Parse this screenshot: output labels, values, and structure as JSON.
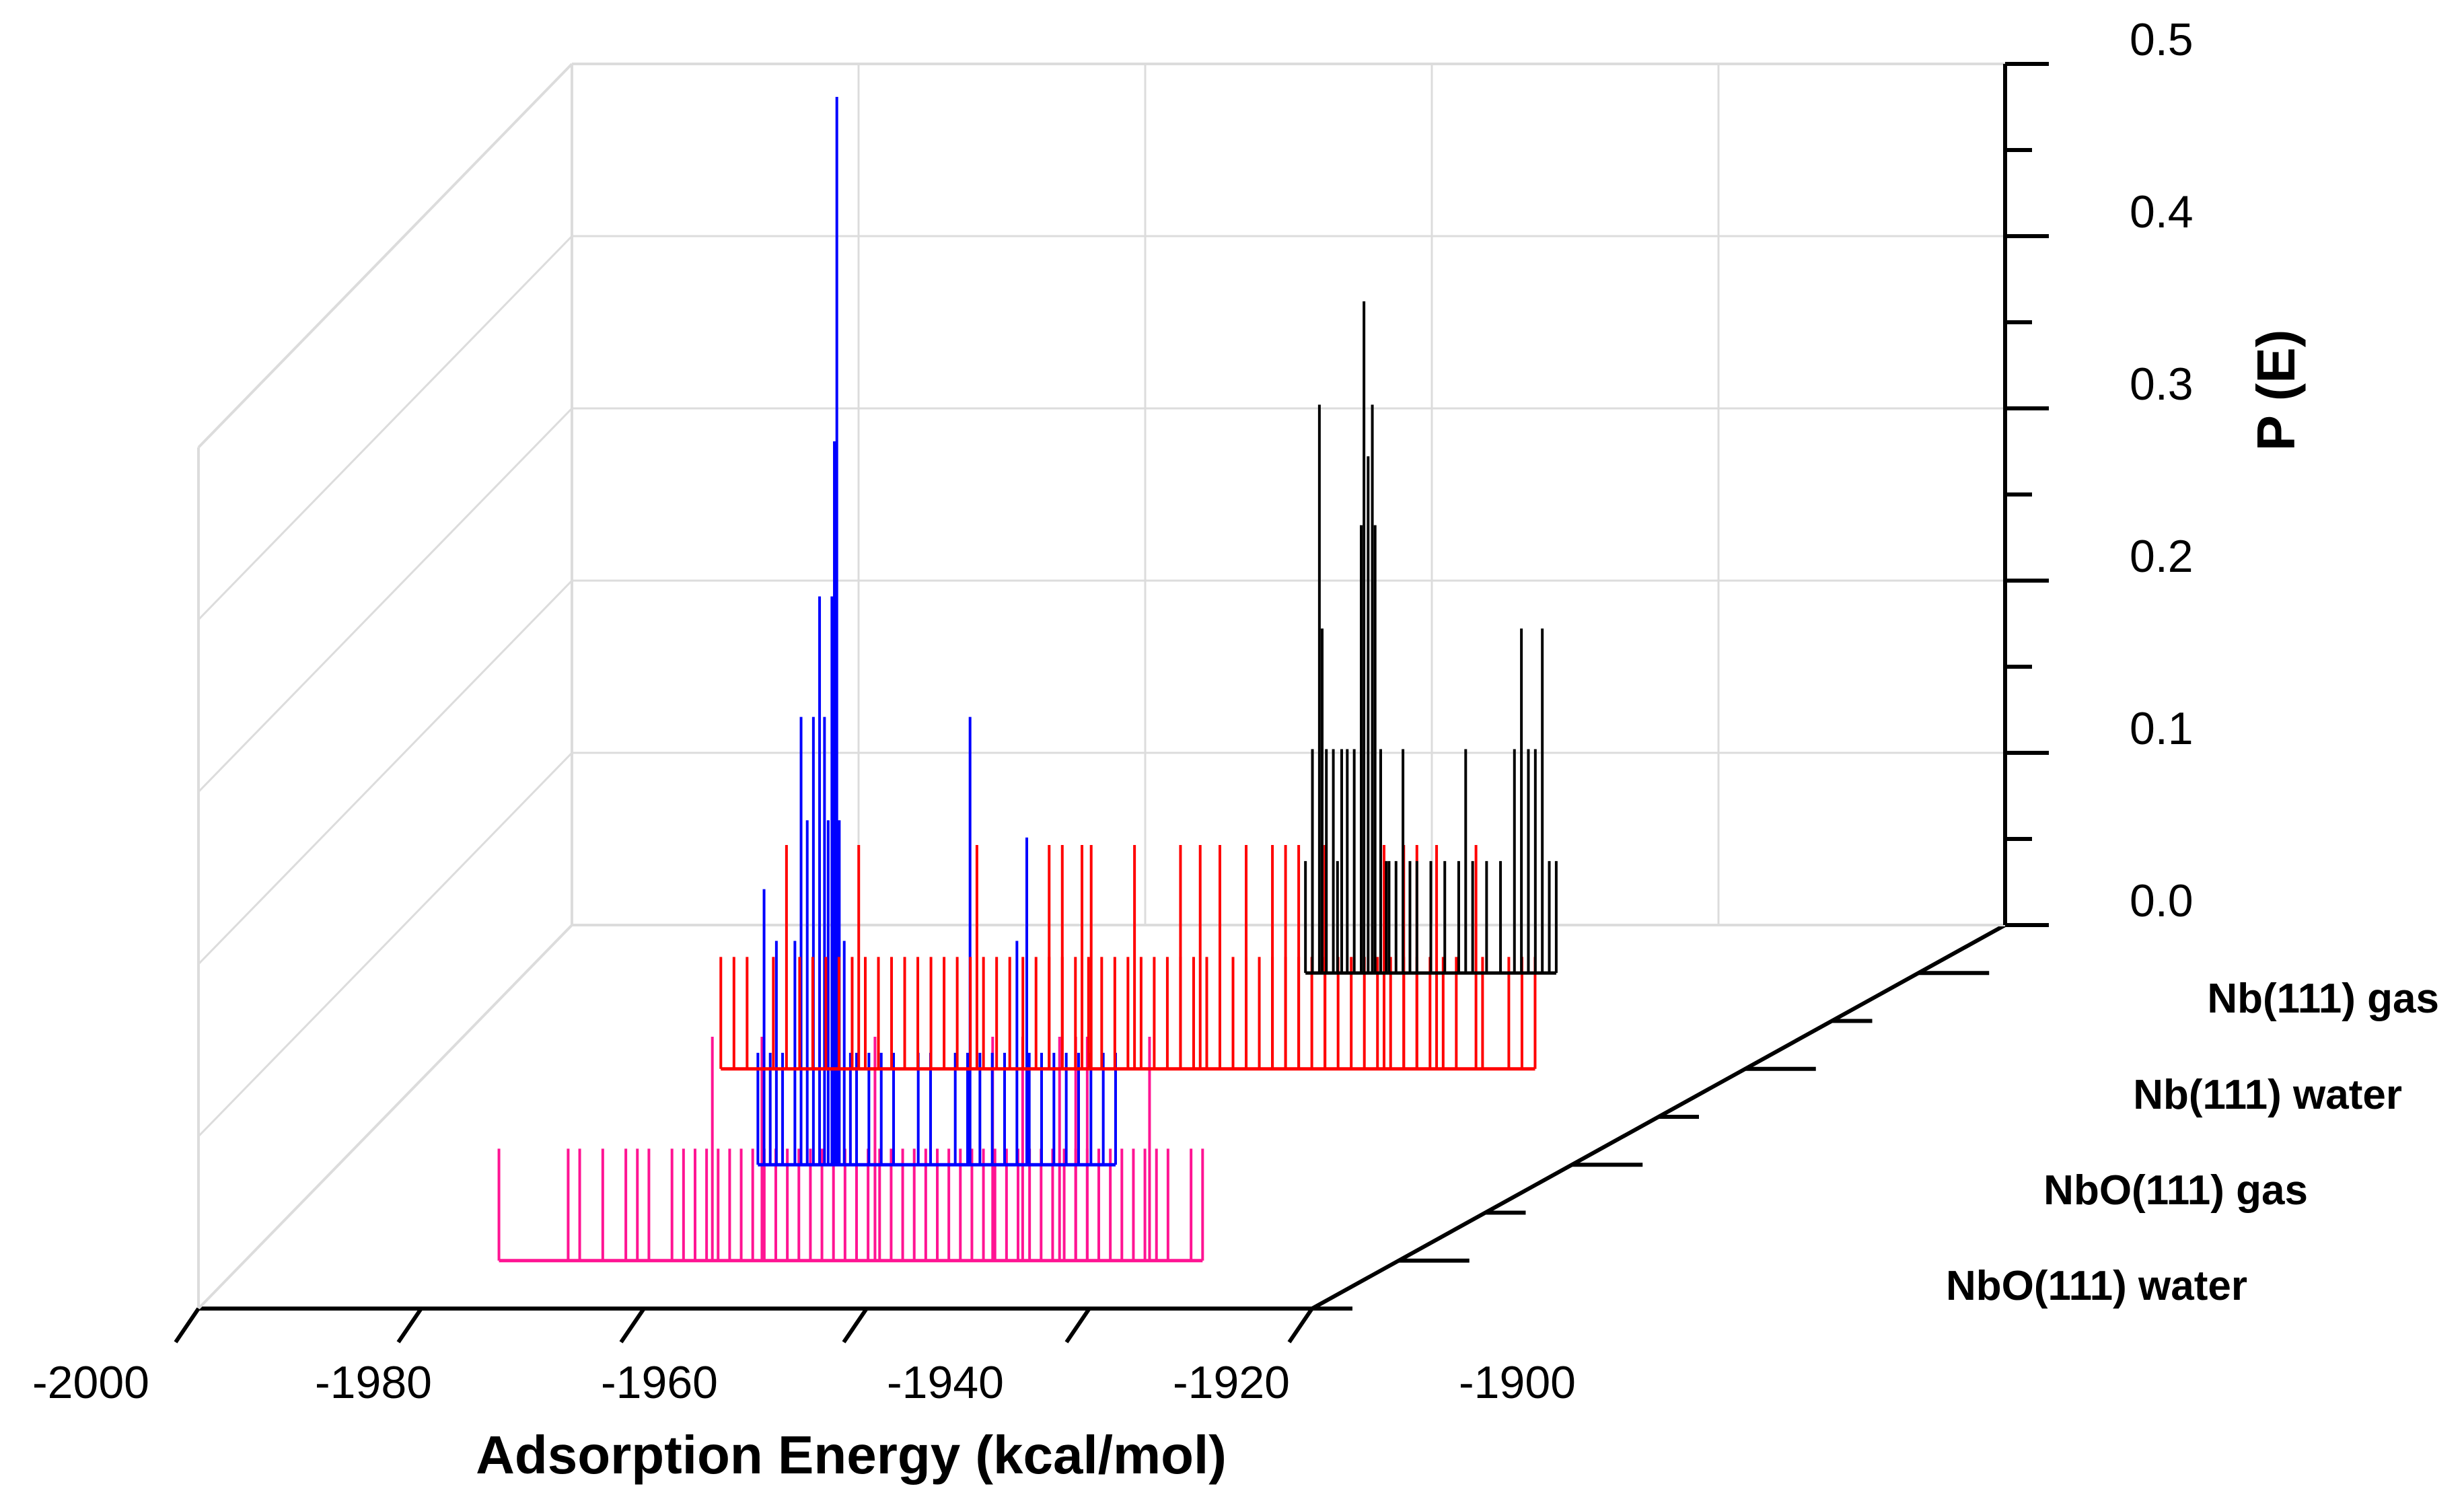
{
  "chart_data": {
    "type": "3d-waterfall-histogram",
    "xlabel": "Adsorption Energy (kcal/mol)",
    "zlabel": "P (E)",
    "xlim": [
      -2000,
      -1900
    ],
    "zlim": [
      0.0,
      0.5
    ],
    "x_ticks": [
      -2000,
      -1980,
      -1960,
      -1940,
      -1920,
      -1900
    ],
    "x_tick_labels": [
      "-2000",
      "-1980",
      "-1960",
      "-1940",
      "-1920",
      "-1900"
    ],
    "z_ticks": [
      0.0,
      0.1,
      0.2,
      0.3,
      0.4,
      0.5
    ],
    "z_tick_labels": [
      "0.0",
      "0.1",
      "0.2",
      "0.3",
      "0.4",
      "0.5"
    ],
    "colors": {
      "frame": "#000000",
      "grid": "#dcdcdc"
    },
    "series": [
      {
        "name": "NbO(111) water",
        "label": "NbO(111) water",
        "color": "#ff1493",
        "depth_index": 0,
        "range": [
          -1978,
          -1917
        ],
        "points": [
          [
            -1978,
            0.065
          ],
          [
            -1972,
            0.065
          ],
          [
            -1971,
            0.065
          ],
          [
            -1969,
            0.065
          ],
          [
            -1967,
            0.065
          ],
          [
            -1966,
            0.065
          ],
          [
            -1965,
            0.065
          ],
          [
            -1963,
            0.065
          ],
          [
            -1962,
            0.065
          ],
          [
            -1961,
            0.065
          ],
          [
            -1960,
            0.065
          ],
          [
            -1959,
            0.065
          ],
          [
            -1958,
            0.065
          ],
          [
            -1957,
            0.065
          ],
          [
            -1956,
            0.065
          ],
          [
            -1955,
            0.065
          ],
          [
            -1954,
            0.065
          ],
          [
            -1953,
            0.065
          ],
          [
            -1952,
            0.065
          ],
          [
            -1951,
            0.065
          ],
          [
            -1950,
            0.065
          ],
          [
            -1949,
            0.065
          ],
          [
            -1948,
            0.065
          ],
          [
            -1947,
            0.065
          ],
          [
            -1946,
            0.065
          ],
          [
            -1945,
            0.065
          ],
          [
            -1944,
            0.065
          ],
          [
            -1943,
            0.065
          ],
          [
            -1942,
            0.065
          ],
          [
            -1941,
            0.065
          ],
          [
            -1940,
            0.065
          ],
          [
            -1939,
            0.065
          ],
          [
            -1938,
            0.065
          ],
          [
            -1937,
            0.065
          ],
          [
            -1936,
            0.065
          ],
          [
            -1935,
            0.065
          ],
          [
            -1934,
            0.065
          ],
          [
            -1933,
            0.065
          ],
          [
            -1932,
            0.065
          ],
          [
            -1931,
            0.065
          ],
          [
            -1930,
            0.065
          ],
          [
            -1929,
            0.065
          ],
          [
            -1928,
            0.065
          ],
          [
            -1927,
            0.065
          ],
          [
            -1926,
            0.065
          ],
          [
            -1925,
            0.065
          ],
          [
            -1924,
            0.065
          ],
          [
            -1923,
            0.065
          ],
          [
            -1922,
            0.065
          ],
          [
            -1921,
            0.065
          ],
          [
            -1920,
            0.065
          ],
          [
            -1918,
            0.065
          ],
          [
            -1917,
            0.065
          ],
          [
            -1959.5,
            0.13
          ],
          [
            -1955.2,
            0.13
          ],
          [
            -1945.4,
            0.13
          ],
          [
            -1935.2,
            0.13
          ],
          [
            -1932.6,
            0.13
          ],
          [
            -1929.4,
            0.13
          ],
          [
            -1928.0,
            0.13
          ],
          [
            -1927.0,
            0.13
          ],
          [
            -1921.6,
            0.13
          ]
        ]
      },
      {
        "name": "NbO(111) gas",
        "label": "NbO(111) gas",
        "color": "#0000ff",
        "depth_index": 1,
        "range": [
          -1966,
          -1937
        ],
        "points": [
          [
            -1966,
            0.065
          ],
          [
            -1965,
            0.065
          ],
          [
            -1964,
            0.065
          ],
          [
            -1963,
            0.13
          ],
          [
            -1962,
            0.2
          ],
          [
            -1961.5,
            0.26
          ],
          [
            -1961,
            0.33
          ],
          [
            -1960.6,
            0.26
          ],
          [
            -1960.3,
            0.2
          ],
          [
            -1960,
            0.33
          ],
          [
            -1959.8,
            0.42
          ],
          [
            -1959.6,
            0.62
          ],
          [
            -1959.4,
            0.2
          ],
          [
            -1959,
            0.13
          ],
          [
            -1958.5,
            0.065
          ],
          [
            -1958,
            0.065
          ],
          [
            -1957,
            0.065
          ],
          [
            -1956,
            0.065
          ],
          [
            -1955,
            0.065
          ],
          [
            -1953,
            0.065
          ],
          [
            -1952,
            0.065
          ],
          [
            -1950,
            0.065
          ],
          [
            -1949,
            0.065
          ],
          [
            -1948,
            0.065
          ],
          [
            -1947,
            0.065
          ],
          [
            -1946,
            0.065
          ],
          [
            -1945,
            0.13
          ],
          [
            -1944,
            0.065
          ],
          [
            -1943,
            0.065
          ],
          [
            -1942,
            0.065
          ],
          [
            -1941,
            0.065
          ],
          [
            -1940,
            0.065
          ],
          [
            -1939,
            0.065
          ],
          [
            -1938,
            0.065
          ],
          [
            -1937,
            0.065
          ],
          [
            -1965.5,
            0.16
          ],
          [
            -1964.5,
            0.13
          ],
          [
            -1962.5,
            0.26
          ],
          [
            -1948.8,
            0.26
          ],
          [
            -1944.2,
            0.19
          ]
        ]
      },
      {
        "name": "Nb(111) water",
        "label": "Nb(111) water",
        "color": "#ff0000",
        "depth_index": 2,
        "range": [
          -1978,
          -1916
        ],
        "points": [
          [
            -1978,
            0.065
          ],
          [
            -1977,
            0.065
          ],
          [
            -1976,
            0.065
          ],
          [
            -1974,
            0.065
          ],
          [
            -1972,
            0.065
          ],
          [
            -1971,
            0.065
          ],
          [
            -1970,
            0.065
          ],
          [
            -1969,
            0.065
          ],
          [
            -1968,
            0.065
          ],
          [
            -1967,
            0.065
          ],
          [
            -1966,
            0.065
          ],
          [
            -1965,
            0.065
          ],
          [
            -1964,
            0.065
          ],
          [
            -1963,
            0.065
          ],
          [
            -1962,
            0.065
          ],
          [
            -1961,
            0.065
          ],
          [
            -1960,
            0.065
          ],
          [
            -1959,
            0.065
          ],
          [
            -1958,
            0.065
          ],
          [
            -1957,
            0.065
          ],
          [
            -1956,
            0.065
          ],
          [
            -1955,
            0.065
          ],
          [
            -1954,
            0.065
          ],
          [
            -1953,
            0.065
          ],
          [
            -1952,
            0.065
          ],
          [
            -1951,
            0.065
          ],
          [
            -1950,
            0.065
          ],
          [
            -1949,
            0.065
          ],
          [
            -1948,
            0.065
          ],
          [
            -1947,
            0.065
          ],
          [
            -1946,
            0.065
          ],
          [
            -1945,
            0.065
          ],
          [
            -1944,
            0.065
          ],
          [
            -1943,
            0.065
          ],
          [
            -1942,
            0.065
          ],
          [
            -1941,
            0.065
          ],
          [
            -1940,
            0.065
          ],
          [
            -1939,
            0.065
          ],
          [
            -1938,
            0.065
          ],
          [
            -1937,
            0.065
          ],
          [
            -1936,
            0.065
          ],
          [
            -1935,
            0.065
          ],
          [
            -1934,
            0.065
          ],
          [
            -1933,
            0.065
          ],
          [
            -1932,
            0.065
          ],
          [
            -1931,
            0.065
          ],
          [
            -1930,
            0.065
          ],
          [
            -1929,
            0.065
          ],
          [
            -1928,
            0.065
          ],
          [
            -1927,
            0.065
          ],
          [
            -1926,
            0.065
          ],
          [
            -1925,
            0.065
          ],
          [
            -1924,
            0.065
          ],
          [
            -1923,
            0.065
          ],
          [
            -1922,
            0.065
          ],
          [
            -1920,
            0.065
          ],
          [
            -1918,
            0.065
          ],
          [
            -1917,
            0.065
          ],
          [
            -1916,
            0.065
          ],
          [
            -1973,
            0.13
          ],
          [
            -1967.5,
            0.13
          ],
          [
            -1958.5,
            0.13
          ],
          [
            -1953,
            0.13
          ],
          [
            -1952,
            0.13
          ],
          [
            -1950.5,
            0.13
          ],
          [
            -1949.8,
            0.13
          ],
          [
            -1946.5,
            0.13
          ],
          [
            -1943,
            0.13
          ],
          [
            -1941.5,
            0.13
          ],
          [
            -1940,
            0.13
          ],
          [
            -1938,
            0.13
          ],
          [
            -1936,
            0.13
          ],
          [
            -1935,
            0.13
          ],
          [
            -1934,
            0.13
          ],
          [
            -1932,
            0.13
          ],
          [
            -1927.5,
            0.13
          ],
          [
            -1926,
            0.13
          ],
          [
            -1925,
            0.13
          ],
          [
            -1923.5,
            0.13
          ],
          [
            -1920.5,
            0.13
          ]
        ]
      },
      {
        "name": "Nb(111) gas",
        "label": "Nb(111) gas",
        "color": "#000000",
        "depth_index": 3,
        "range": [
          -1944,
          -1926
        ],
        "points": [
          [
            -1944,
            0.065
          ],
          [
            -1943.5,
            0.13
          ],
          [
            -1943,
            0.33
          ],
          [
            -1942.8,
            0.2
          ],
          [
            -1942.5,
            0.13
          ],
          [
            -1942,
            0.13
          ],
          [
            -1941.7,
            0.065
          ],
          [
            -1941.4,
            0.13
          ],
          [
            -1941,
            0.13
          ],
          [
            -1940.5,
            0.13
          ],
          [
            -1940,
            0.26
          ],
          [
            -1939.8,
            0.39
          ],
          [
            -1939.5,
            0.3
          ],
          [
            -1939.2,
            0.33
          ],
          [
            -1939,
            0.26
          ],
          [
            -1938.6,
            0.13
          ],
          [
            -1938.2,
            0.065
          ],
          [
            -1938,
            0.065
          ],
          [
            -1937.5,
            0.065
          ],
          [
            -1937,
            0.13
          ],
          [
            -1936.5,
            0.065
          ],
          [
            -1936,
            0.065
          ],
          [
            -1935,
            0.065
          ],
          [
            -1934,
            0.065
          ],
          [
            -1933,
            0.065
          ],
          [
            -1932.5,
            0.13
          ],
          [
            -1932,
            0.065
          ],
          [
            -1931,
            0.065
          ],
          [
            -1930,
            0.065
          ],
          [
            -1929,
            0.13
          ],
          [
            -1928.5,
            0.2
          ],
          [
            -1928,
            0.13
          ],
          [
            -1927.5,
            0.13
          ],
          [
            -1927,
            0.2
          ],
          [
            -1926.5,
            0.065
          ],
          [
            -1926,
            0.065
          ]
        ]
      }
    ]
  }
}
